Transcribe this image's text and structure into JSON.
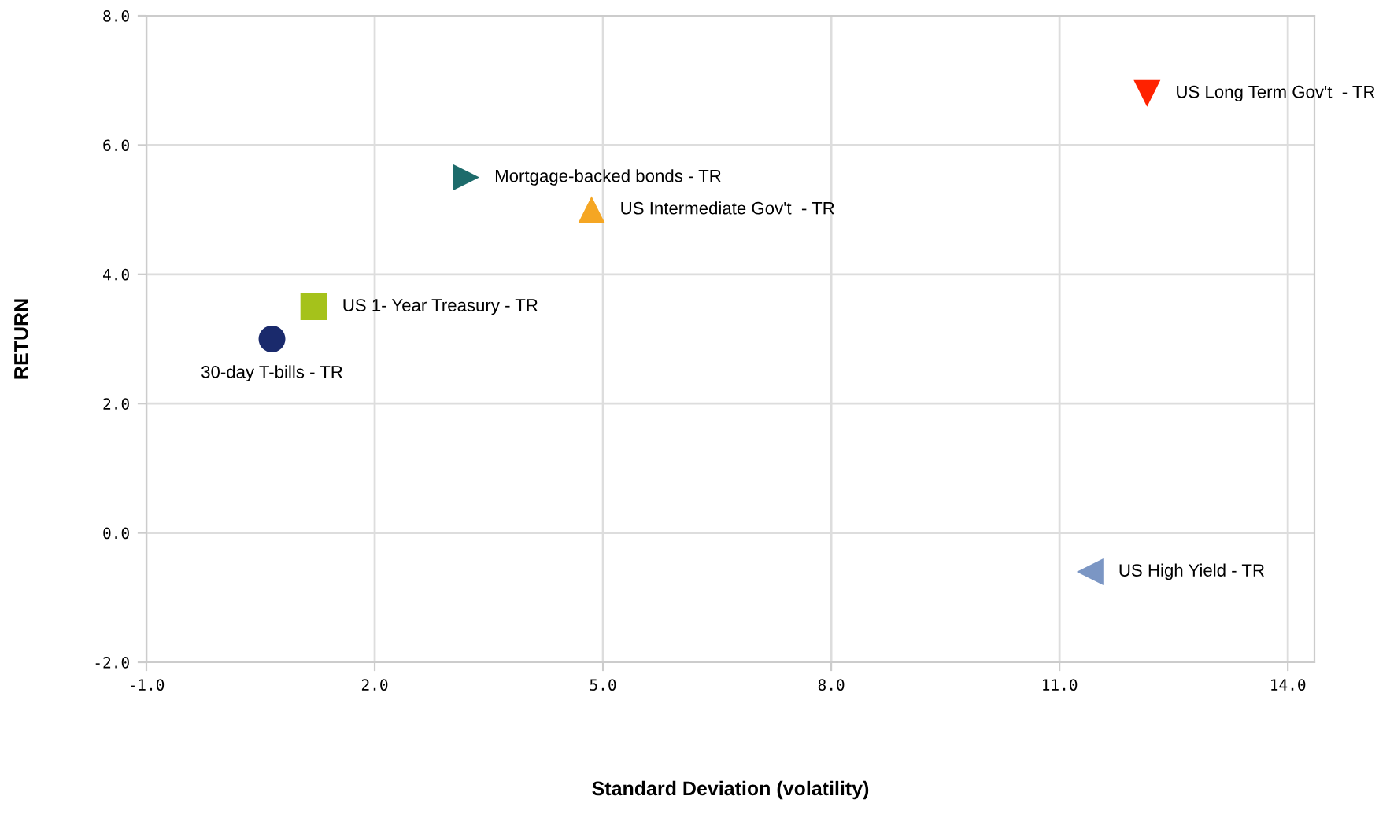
{
  "chart_data": {
    "type": "scatter",
    "xlabel": "Standard Deviation (volatility)",
    "ylabel": "RETURN",
    "xlim": [
      -1.0,
      14.35
    ],
    "ylim": [
      -2.0,
      8.0
    ],
    "xticks": [
      {
        "value": -1,
        "label": "-1.0"
      },
      {
        "value": 2,
        "label": "2.0"
      },
      {
        "value": 5,
        "label": "5.0"
      },
      {
        "value": 8,
        "label": "8.0"
      },
      {
        "value": 11,
        "label": "11.0"
      },
      {
        "value": 14,
        "label": "14.0"
      }
    ],
    "yticks": [
      {
        "value": -2,
        "label": "-2.0"
      },
      {
        "value": 0,
        "label": "0.0"
      },
      {
        "value": 2,
        "label": "2.0"
      },
      {
        "value": 4,
        "label": "4.0"
      },
      {
        "value": 6,
        "label": "6.0"
      },
      {
        "value": 8,
        "label": "8.0"
      }
    ],
    "grid": true,
    "legend": false,
    "series": [
      {
        "name": "30-day T-bills - TR",
        "color": "#1a2a6c",
        "marker": "circle",
        "x": [
          0.65
        ],
        "values": [
          3.0
        ]
      },
      {
        "name": "US 1- Year Treasury - TR",
        "color": "#a5c21b",
        "marker": "square",
        "x": [
          1.2
        ],
        "values": [
          3.5
        ]
      },
      {
        "name": "Mortgage-backed bonds - TR",
        "color": "#1d6b6b",
        "marker": "triangle-right",
        "x": [
          3.2
        ],
        "values": [
          5.5
        ]
      },
      {
        "name": "US Intermediate Gov't  - TR",
        "color": "#f5a623",
        "marker": "triangle",
        "x": [
          4.85
        ],
        "values": [
          5.0
        ]
      },
      {
        "name": "US Long Term Gov't  - TR",
        "color": "#ff2200",
        "marker": "triangle-down",
        "x": [
          12.15
        ],
        "values": [
          6.8
        ]
      },
      {
        "name": "US High Yield - TR",
        "color": "#7b96c4",
        "marker": "triangle-left",
        "x": [
          11.4
        ],
        "values": [
          -0.6
        ]
      }
    ]
  }
}
